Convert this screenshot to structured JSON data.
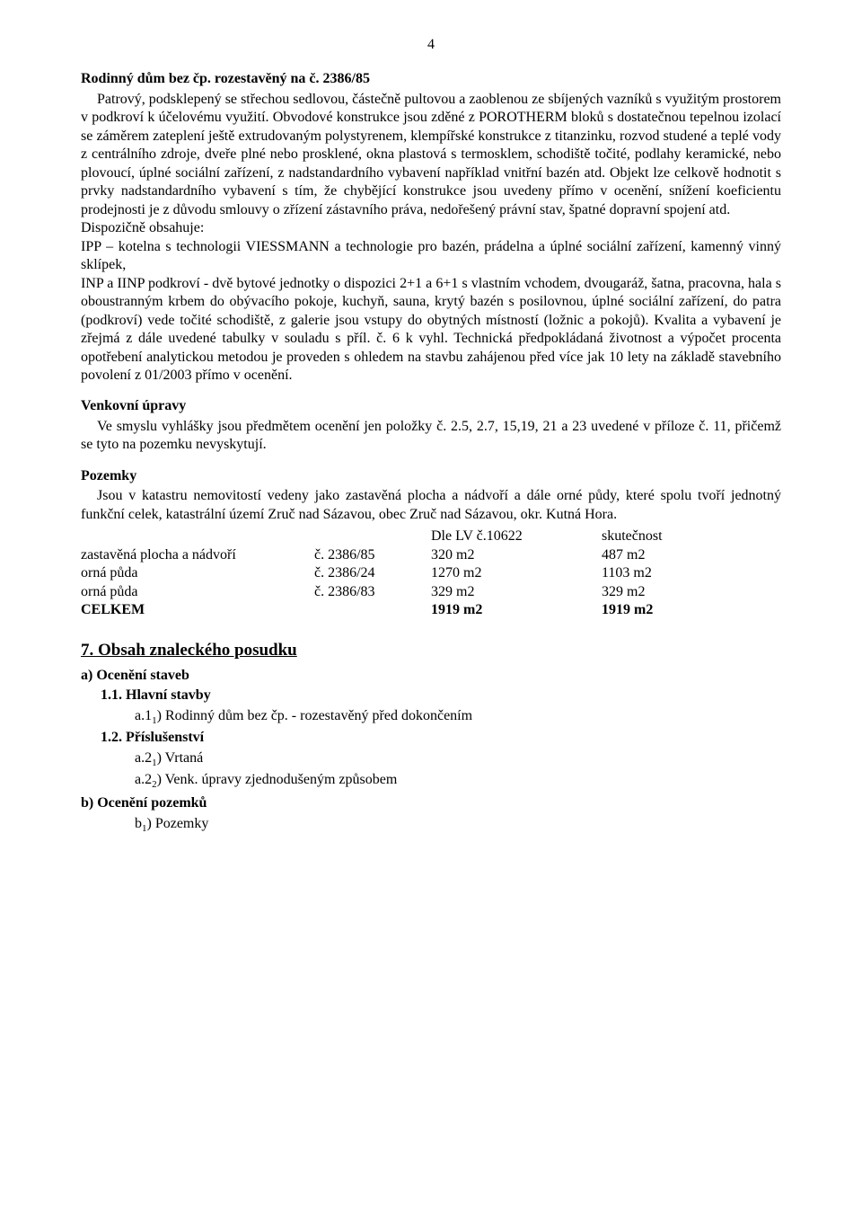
{
  "page_number": "4",
  "heading1": "Rodinný dům bez čp. rozestavěný na č. 2386/85",
  "para1": "Patrový, podsklepený se střechou sedlovou, částečně pultovou a zaoblenou ze sbíjených vazníků s využitým prostorem v podkroví k účelovému využití. Obvodové konstrukce jsou zděné z POROTHERM bloků s dostatečnou tepelnou izolací se záměrem zateplení ještě extrudovaným polystyrenem, klempířské konstrukce z titanzinku, rozvod studené a teplé vody z centrálního zdroje, dveře plné nebo prosklené, okna plastová s termosklem, schodiště točité, podlahy keramické, nebo plovoucí, úplné sociální zařízení, z nadstandardního vybavení například vnitřní bazén atd. Objekt lze celkově hodnotit s prvky nadstandardního vybavení s tím, že chybějící konstrukce jsou uvedeny přímo v ocenění, snížení koeficientu prodejnosti je z důvodu smlouvy o zřízení zástavního práva, nedořešený právní stav, špatné dopravní spojení atd.",
  "para2a": "Dispozičně obsahuje:",
  "para2b": "IPP – kotelna s technologii VIESSMANN a technologie pro bazén, prádelna a úplné sociální zařízení, kamenný vinný sklípek,",
  "para2c": "INP a IINP podkroví - dvě bytové jednotky o dispozici 2+1 a 6+1 s vlastním vchodem, dvougaráž, šatna, pracovna, hala s oboustranným krbem do obývacího pokoje, kuchyň, sauna, krytý bazén s posilovnou, úplné sociální zařízení, do patra (podkroví) vede točité schodiště, z galerie jsou vstupy do obytných místností (ložnic a pokojů). Kvalita a vybavení je zřejmá z dále uvedené tabulky v souladu s příl. č. 6 k vyhl. Technická předpokládaná životnost a výpočet procenta opotřebení analytickou metodou je proveden s ohledem na stavbu zahájenou před více jak 10 lety na základě stavebního povolení z 01/2003 přímo v ocenění.",
  "heading2": "Venkovní úpravy",
  "para3": "Ve smyslu vyhlášky jsou předmětem ocenění jen položky č. 2.5, 2.7, 15,19, 21 a 23 uvedené v příloze č. 11, přičemž se tyto na pozemku nevyskytují.",
  "heading3": "Pozemky",
  "para4": "Jsou v katastru nemovitostí vedeny jako zastavěná plocha a nádvoří a dále orné půdy, které spolu tvoří jednotný funkční celek, katastrální území Zruč nad Sázavou, obec Zruč nad Sázavou, okr. Kutná Hora.",
  "table": {
    "hdr_c": "Dle LV č.10622",
    "hdr_d": "skutečnost",
    "rows": [
      {
        "a": "zastavěná plocha a nádvoří",
        "b": "č. 2386/85",
        "c": "320 m2",
        "d": "487 m2"
      },
      {
        "a": "orná půda",
        "b": "č. 2386/24",
        "c": "1270 m2",
        "d": "1103 m2"
      },
      {
        "a": "orná půda",
        "b": "č. 2386/83",
        "c": "329 m2",
        "d": "329 m2"
      }
    ],
    "total_a": "CELKEM",
    "total_c": "1919 m2",
    "total_d": "1919 m2"
  },
  "sec7": "7. Obsah znaleckého posudku",
  "sec_a": "a) Ocenění staveb",
  "sec_a_11": "1.1. Hlavní stavby",
  "sec_a_11_item_pre": "a.1",
  "sec_a_11_item_sub": "1",
  "sec_a_11_item_post": ") Rodinný dům bez čp. - rozestavěný před dokončením",
  "sec_a_12": "1.2. Příslušenství",
  "sec_a_12_item1_pre": "a.2",
  "sec_a_12_item1_sub": "1",
  "sec_a_12_item1_post": ") Vrtaná",
  "sec_a_12_item2_pre": "a.2",
  "sec_a_12_item2_sub": "2",
  "sec_a_12_item2_post": ") Venk. úpravy zjednodušeným způsobem",
  "sec_b": "b) Ocenění pozemků",
  "sec_b_item_pre": "b",
  "sec_b_item_sub": "1",
  "sec_b_item_post": ") Pozemky"
}
